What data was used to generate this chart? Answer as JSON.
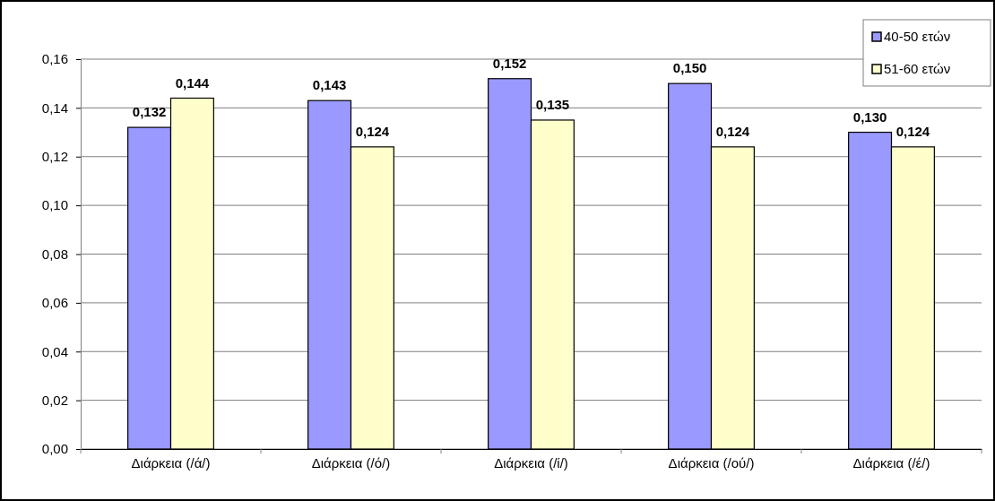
{
  "chart_data": {
    "type": "bar",
    "categories": [
      "Διάρκεια (/ά/)",
      "Διάρκεια (/ό/)",
      "Διάρκεια (/ί/)",
      "Διάρκεια (/ού/)",
      "Διάρκεια (/έ/)"
    ],
    "series": [
      {
        "name": "40-50 ετών",
        "color": "#9999ff",
        "values": [
          0.132,
          0.143,
          0.152,
          0.15,
          0.13
        ],
        "value_labels": [
          "0,132",
          "0,143",
          "0,152",
          "0,150",
          "0,130"
        ]
      },
      {
        "name": "51-60 ετών",
        "color": "#ffffcc",
        "values": [
          0.144,
          0.124,
          0.135,
          0.124,
          0.124
        ],
        "value_labels": [
          "0,144",
          "0,124",
          "0,135",
          "0,124",
          "0,124"
        ]
      }
    ],
    "ylim": [
      0,
      0.16
    ],
    "yticks": [
      {
        "value": 0,
        "label": "0,00"
      },
      {
        "value": 0.02,
        "label": "0,02"
      },
      {
        "value": 0.04,
        "label": "0,04"
      },
      {
        "value": 0.06,
        "label": "0,06"
      },
      {
        "value": 0.08,
        "label": "0,08"
      },
      {
        "value": 0.1,
        "label": "0,10"
      },
      {
        "value": 0.12,
        "label": "0,12"
      },
      {
        "value": 0.14,
        "label": "0,14"
      },
      {
        "value": 0.16,
        "label": "0,16"
      }
    ],
    "grid": "y",
    "legend": "top right"
  }
}
